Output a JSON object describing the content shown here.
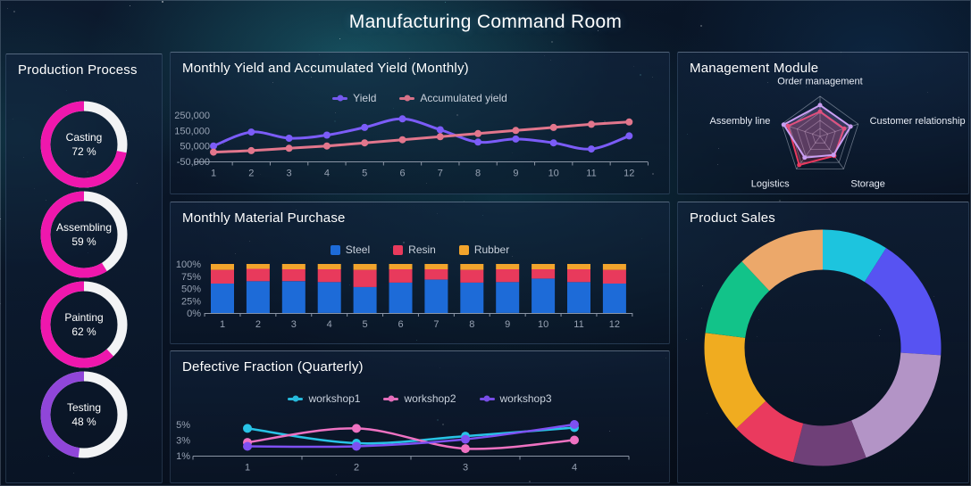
{
  "header": {
    "title": "Manufacturing Command Room"
  },
  "panels": {
    "production": {
      "title": "Production Process"
    },
    "yield": {
      "title": "Monthly Yield and Accumulated Yield (Monthly)"
    },
    "material": {
      "title": "Monthly Material Purchase"
    },
    "defective": {
      "title": "Defective Fraction (Quarterly)"
    },
    "management": {
      "title": "Management Module"
    },
    "sales": {
      "title": "Product Sales"
    }
  },
  "chart_data": [
    {
      "id": "production",
      "type": "donut",
      "title": "Production Process",
      "gauges": [
        {
          "label": "Casting",
          "value": 72,
          "display": "72 %",
          "color": "#ef17ad"
        },
        {
          "label": "Assembling",
          "value": 59,
          "display": "59 %",
          "color": "#ef17ad"
        },
        {
          "label": "Painting",
          "value": 62,
          "display": "62 %",
          "color": "#ef17ad"
        },
        {
          "label": "Testing",
          "value": 48,
          "display": "48 %",
          "color": "#9046d9"
        }
      ],
      "track_color": "#f2f3f5"
    },
    {
      "id": "yield",
      "type": "line",
      "title": "Monthly Yield and Accumulated Yield (Monthly)",
      "categories": [
        1,
        2,
        3,
        4,
        5,
        6,
        7,
        8,
        9,
        10,
        11,
        12
      ],
      "ylim": [
        -50000,
        250000
      ],
      "yticks": [
        {
          "v": 250000,
          "label": "250,000"
        },
        {
          "v": 150000,
          "label": "150,000"
        },
        {
          "v": 50000,
          "label": "50,000"
        },
        {
          "v": -50000,
          "label": "-50,000"
        }
      ],
      "legend_position": "top",
      "grid": false,
      "series": [
        {
          "name": "Yield",
          "color": "#7b5cf8",
          "values": [
            50000,
            140000,
            100000,
            120000,
            170000,
            225000,
            155000,
            75000,
            95000,
            70000,
            30000,
            115000
          ]
        },
        {
          "name": "Accumulated yield",
          "color": "#e2768c",
          "values": [
            10000,
            20000,
            35000,
            50000,
            70000,
            90000,
            110000,
            130000,
            150000,
            170000,
            190000,
            205000
          ]
        }
      ]
    },
    {
      "id": "material",
      "type": "bar",
      "stacked": true,
      "title": "Monthly Material Purchase",
      "unit": "%",
      "categories": [
        1,
        2,
        3,
        4,
        5,
        6,
        7,
        8,
        9,
        10,
        11,
        12
      ],
      "ylim": [
        0,
        100
      ],
      "yticks": [
        {
          "v": 100,
          "label": "100%"
        },
        {
          "v": 75,
          "label": "75%"
        },
        {
          "v": 50,
          "label": "50%"
        },
        {
          "v": 25,
          "label": "25%"
        },
        {
          "v": 0,
          "label": "0%"
        }
      ],
      "legend_position": "top",
      "series": [
        {
          "name": "Steel",
          "color": "#1d6bd8",
          "values": [
            60,
            65,
            65,
            63,
            53,
            62,
            68,
            62,
            63,
            70,
            63,
            60
          ]
        },
        {
          "name": "Resin",
          "color": "#e83a5c",
          "values": [
            28,
            25,
            24,
            26,
            35,
            27,
            21,
            26,
            26,
            19,
            26,
            28
          ]
        },
        {
          "name": "Rubber",
          "color": "#f2a42c",
          "values": [
            12,
            10,
            11,
            11,
            12,
            11,
            11,
            12,
            11,
            11,
            11,
            12
          ]
        }
      ]
    },
    {
      "id": "defective",
      "type": "line",
      "title": "Defective Fraction (Quarterly)",
      "categories": [
        1,
        2,
        3,
        4
      ],
      "ylim": [
        1,
        5.2
      ],
      "yticks": [
        {
          "v": 5,
          "label": "5%"
        },
        {
          "v": 3,
          "label": "3%"
        },
        {
          "v": 1,
          "label": "1%"
        }
      ],
      "legend_position": "top",
      "series": [
        {
          "name": "workshop1",
          "color": "#28c3e6",
          "values": [
            4.5,
            2.6,
            3.5,
            4.6
          ]
        },
        {
          "name": "workshop2",
          "color": "#ef72c2",
          "values": [
            2.7,
            4.5,
            1.9,
            3.0
          ]
        },
        {
          "name": "workshop3",
          "color": "#7e50f2",
          "values": [
            2.2,
            2.2,
            3.1,
            5.0
          ]
        }
      ]
    },
    {
      "id": "management",
      "type": "radar",
      "title": "Management Module",
      "indicators": [
        "Order management",
        "Customer relationship",
        "Storage",
        "Logistics",
        "Assembly line"
      ],
      "max": 100,
      "levels": 5,
      "series": [
        {
          "color": "#e8395e",
          "values": [
            62,
            63,
            60,
            88,
            84
          ]
        },
        {
          "color": "#c99ef2",
          "values": [
            78,
            80,
            57,
            65,
            95
          ]
        }
      ]
    },
    {
      "id": "sales",
      "type": "pie",
      "title": "Product Sales",
      "donut": true,
      "segments": [
        {
          "color": "#1dc4de",
          "value": 9
        },
        {
          "color": "#5753f2",
          "value": 17
        },
        {
          "color": "#b394c6",
          "value": 18
        },
        {
          "color": "#6f4078",
          "value": 10
        },
        {
          "color": "#ea3a5e",
          "value": 9
        },
        {
          "color": "#f0ac20",
          "value": 14
        },
        {
          "color": "#12c389",
          "value": 11
        },
        {
          "color": "#eca86a",
          "value": 12
        }
      ]
    }
  ]
}
